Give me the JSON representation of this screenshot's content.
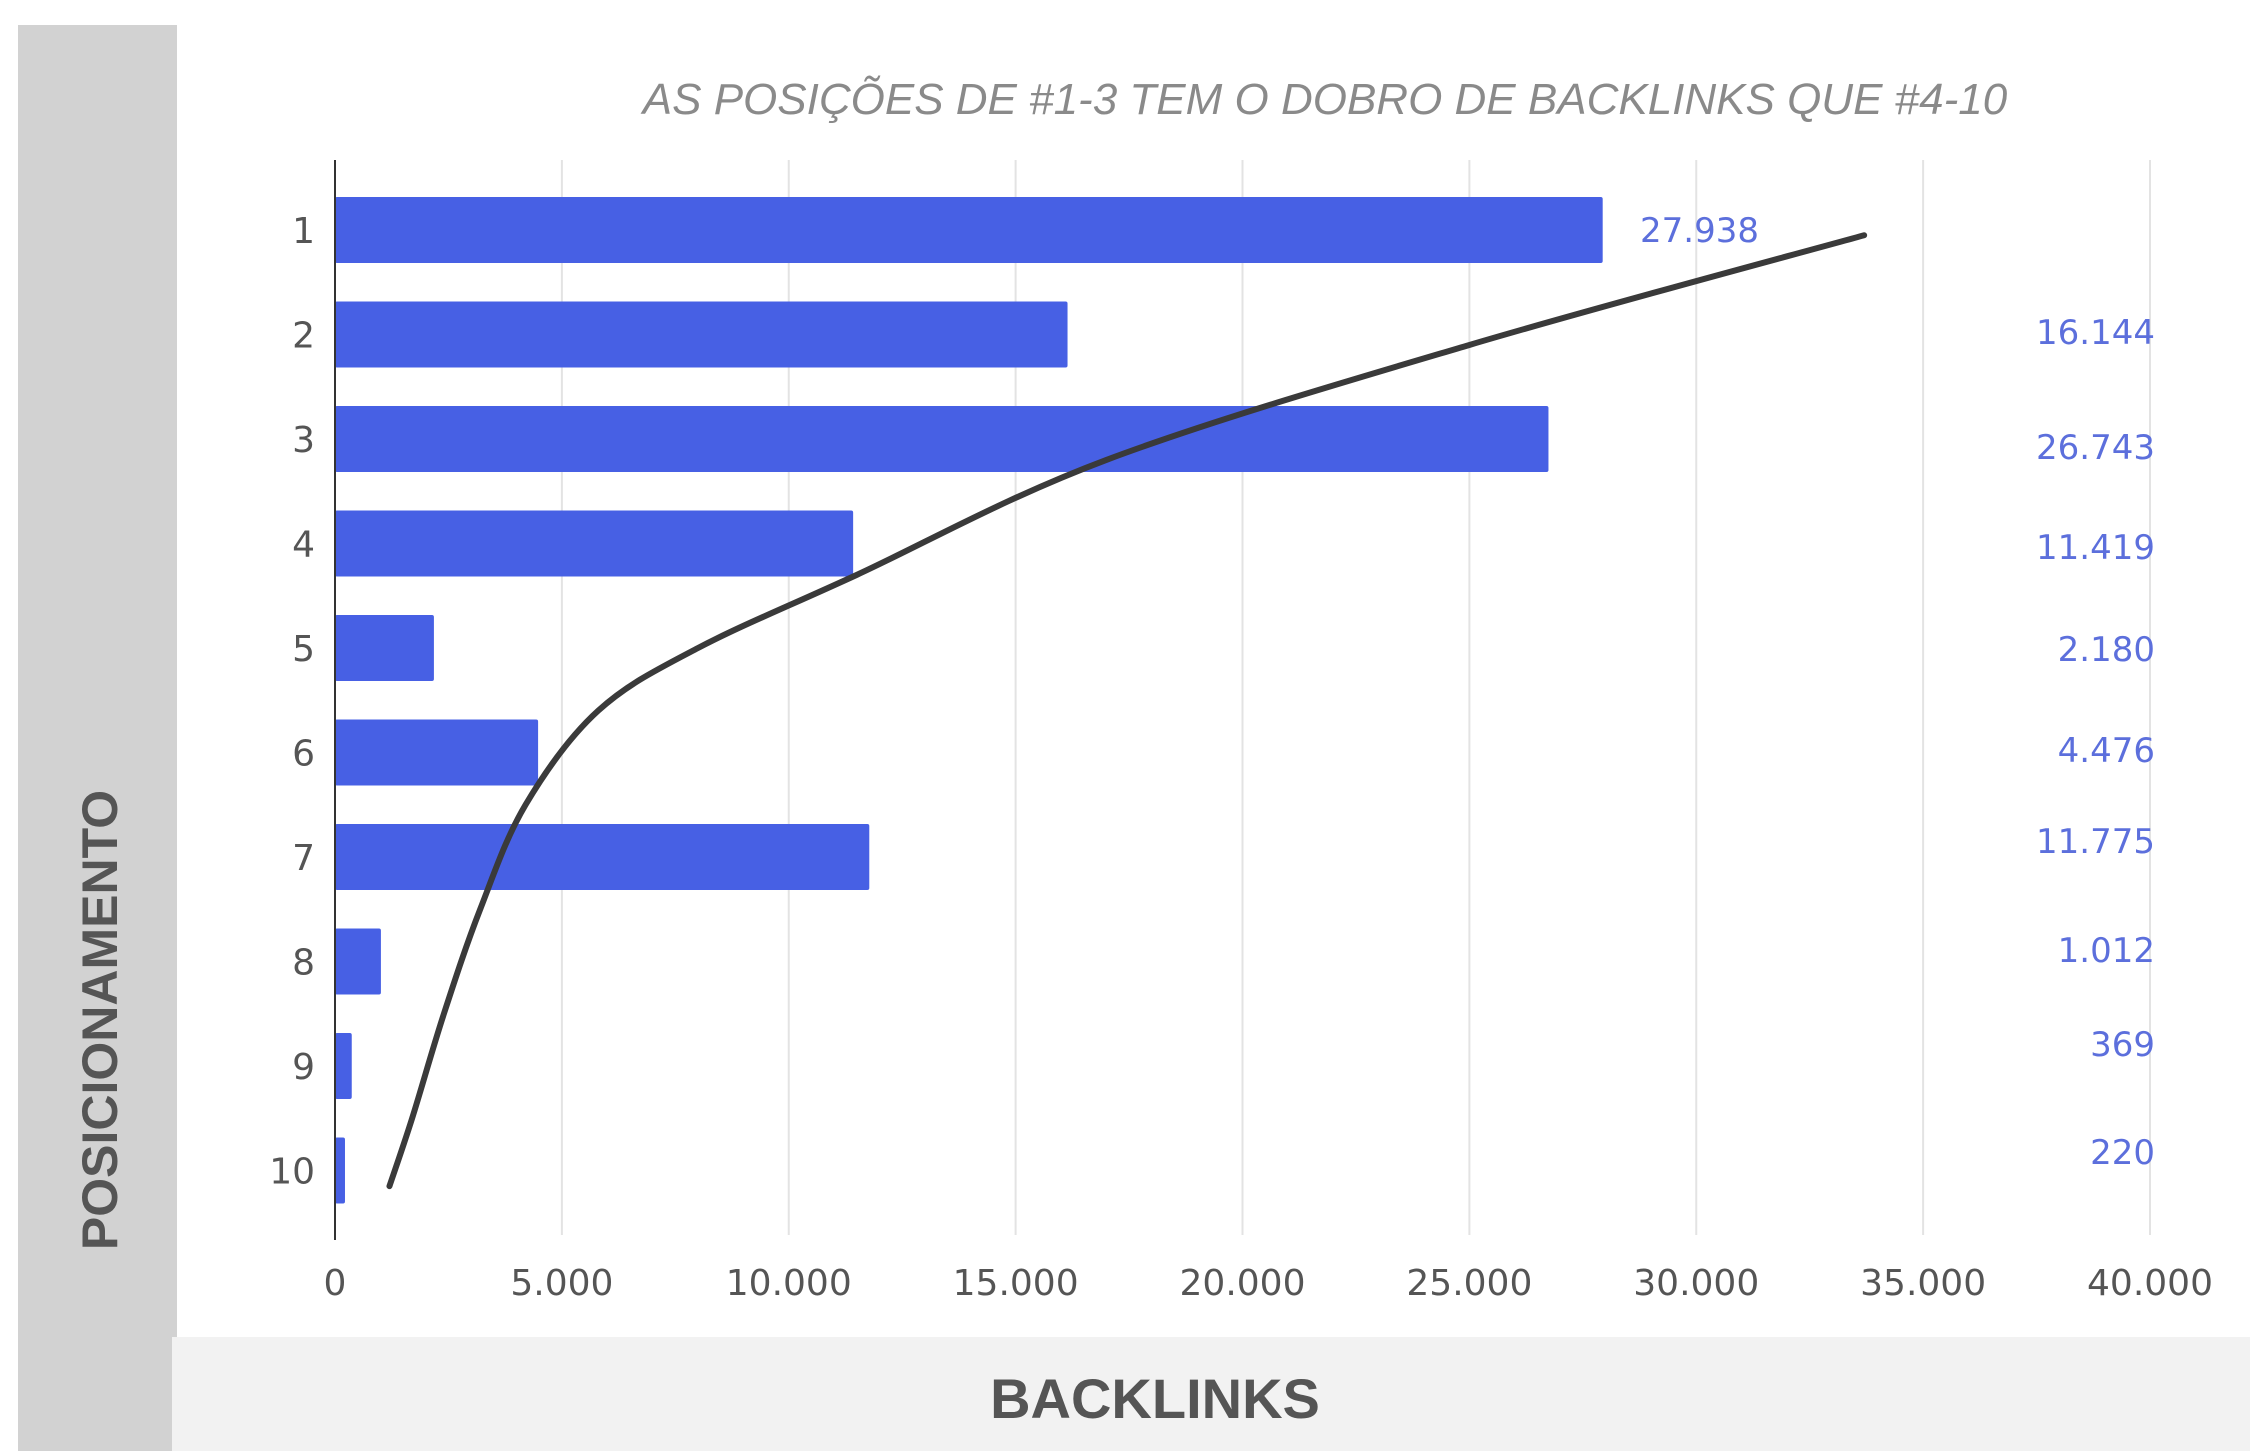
{
  "chart_data": {
    "type": "bar",
    "orientation": "horizontal",
    "title": "AS POSIÇÕES DE  #1-3 TEM O DOBRO DE BACKLINKS QUE #4-10",
    "xlabel": "BACKLINKS",
    "ylabel": "POSICIONAMENTO",
    "categories": [
      "1",
      "2",
      "3",
      "4",
      "5",
      "6",
      "7",
      "8",
      "9",
      "10"
    ],
    "values": [
      27938,
      16144,
      26743,
      11419,
      2180,
      4476,
      11775,
      1012,
      369,
      220
    ],
    "value_labels": [
      "27.938",
      "16.144",
      "26.743",
      "11.419",
      "2.180",
      "4.476",
      "11.775",
      "1.012",
      "369",
      "220"
    ],
    "xlim": [
      0,
      40000
    ],
    "xticks": [
      0,
      5000,
      10000,
      15000,
      20000,
      25000,
      30000,
      35000,
      40000
    ],
    "xtick_labels": [
      "0",
      "5.000",
      "10.000",
      "15.000",
      "20.000",
      "25.000",
      "30.000",
      "35.000",
      "40.000"
    ],
    "grid": true,
    "legend": "none",
    "trendline": {
      "type": "curve",
      "color": "#3a3a3a",
      "points": [
        [
          1200,
          10.15
        ],
        [
          1700,
          9.5
        ],
        [
          2400,
          8.5
        ],
        [
          3200,
          7.5
        ],
        [
          4200,
          6.5
        ],
        [
          5800,
          5.6
        ],
        [
          8000,
          5.0
        ],
        [
          11500,
          4.3
        ],
        [
          17000,
          3.2
        ],
        [
          25000,
          2.1
        ],
        [
          33700,
          1.05
        ]
      ]
    },
    "colors": {
      "bar": "#4760e4",
      "value_label": "#5c6fdc",
      "axis_text": "#555555",
      "title": "#8a8a8a"
    }
  }
}
